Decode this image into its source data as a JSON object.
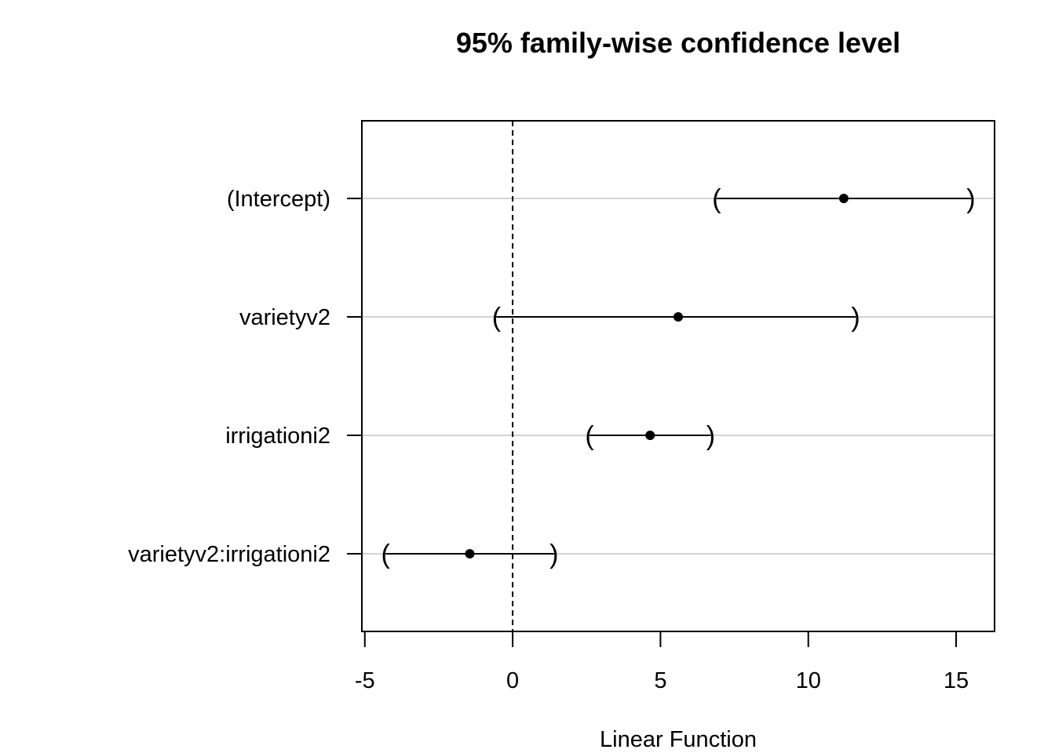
{
  "chart_data": {
    "type": "interval",
    "title": "95% family-wise confidence level",
    "xlabel": "Linear Function",
    "ylabel": "",
    "xlim": [
      -5.1,
      16.3
    ],
    "x_ticks": [
      -5,
      0,
      5,
      10,
      15
    ],
    "x_tick_labels": [
      "-5",
      "0",
      "5",
      "10",
      "15"
    ],
    "reference_line": 0,
    "grid": "horizontal",
    "categories": [
      "(Intercept)",
      "varietyv2",
      "irrigationi2",
      "varietyv2:irrigationi2"
    ],
    "estimates": [
      11.2,
      5.6,
      4.65,
      -1.45
    ],
    "lower": [
      6.9,
      -0.55,
      2.6,
      -4.3
    ],
    "upper": [
      15.5,
      11.6,
      6.7,
      1.4
    ],
    "colors": {
      "grid": "#d3d3d3",
      "ink": "#000000"
    }
  }
}
